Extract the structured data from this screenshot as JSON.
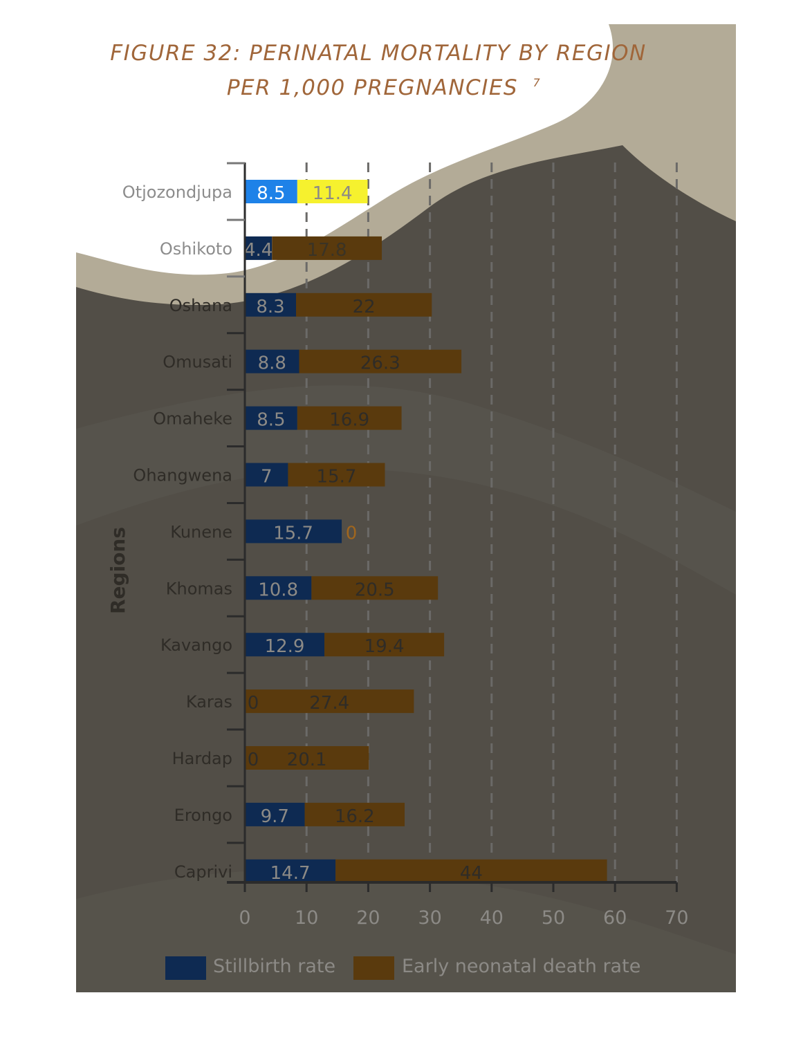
{
  "title_line1": "FIGURE 32: PERINATAL MORTALITY BY REGION",
  "title_line2": "PER 1,000 PREGNANCIES",
  "title_note": "7",
  "colors": {
    "title": "#a0663a",
    "panel_dark": "#524e47",
    "wave_band": "#b3ab97",
    "axis": "#2b2b2b",
    "gridline": "#6b6a68",
    "stillbirth": "#0e2a52",
    "neonatal": "#5a3a0d",
    "highlight_stillbirth": "#1e82e8",
    "highlight_neonatal": "#f6f12e",
    "label_light": "#8c8c8c",
    "label_dark": "#2f2c27",
    "value_text": "#8c8a86"
  },
  "chart_data": {
    "type": "bar",
    "orientation": "horizontal",
    "stacked": true,
    "ylabel": "Regions",
    "xlabel": "",
    "xlim": [
      0,
      70
    ],
    "xticks": [
      0,
      10,
      20,
      30,
      40,
      50,
      60,
      70
    ],
    "grid": "vertical dashed",
    "legend_position": "bottom",
    "categories": [
      "Otjozondjupa",
      "Oshikoto",
      "Oshana",
      "Omusati",
      "Omaheke",
      "Ohangwena",
      "Kunene",
      "Khomas",
      "Kavango",
      "Karas",
      "Hardap",
      "Erongo",
      "Caprivi"
    ],
    "series": [
      {
        "name": "Stillbirth rate",
        "values": [
          8.5,
          4.4,
          8.3,
          8.8,
          8.5,
          7,
          15.7,
          10.8,
          12.9,
          0,
          0,
          9.7,
          14.7
        ]
      },
      {
        "name": "Early neonatal death rate",
        "values": [
          11.4,
          17.8,
          22,
          26.3,
          16.9,
          15.7,
          0,
          20.5,
          19.4,
          27.4,
          20.1,
          16.2,
          44
        ]
      }
    ],
    "highlighted_category": "Otjozondjupa"
  }
}
